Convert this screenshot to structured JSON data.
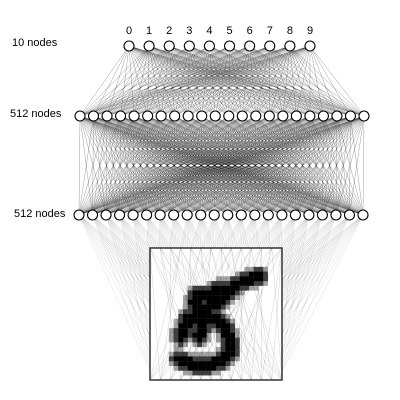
{
  "layers": [
    {
      "label": "10 nodes",
      "nodes": 10,
      "shown_nodes": 10
    },
    {
      "label": "512 nodes",
      "nodes": 512,
      "shown_nodes": 22
    },
    {
      "label": "512 nodes",
      "nodes": 512,
      "shown_nodes": 22
    }
  ],
  "output_labels": [
    "0",
    "1",
    "2",
    "3",
    "4",
    "5",
    "6",
    "7",
    "8",
    "9"
  ],
  "input": {
    "depicts": "handwritten digit",
    "digit": "5",
    "pixel_grid": 28
  },
  "colors": {
    "edge": "#000000",
    "node_fill": "#ffffff",
    "node_stroke": "#000000",
    "input_ink": "#000000",
    "input_frame": "#333333"
  }
}
